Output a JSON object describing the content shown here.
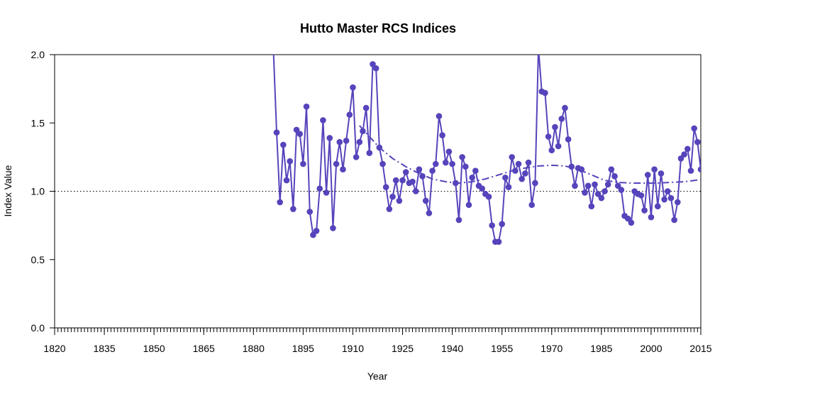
{
  "chart_data": {
    "type": "line",
    "title": "Hutto Master RCS Indices",
    "xlabel": "Year",
    "ylabel": "Index Value",
    "xlim": [
      1820,
      2015
    ],
    "ylim": [
      0,
      2.0
    ],
    "x_ticks": [
      1820,
      1835,
      1850,
      1865,
      1880,
      1895,
      1910,
      1925,
      1940,
      1955,
      1970,
      1985,
      2000,
      2015
    ],
    "y_ticks": [
      0.0,
      0.5,
      1.0,
      1.5,
      2.0
    ],
    "y_tick_labels": [
      "0.0",
      "0.5",
      "1.0",
      "1.5",
      "2.0"
    ],
    "reference_line": 1.0,
    "colors": {
      "series": "#5544bb",
      "reference": "#000000"
    },
    "series": [
      {
        "style": "line-markers",
        "x": [
          1886,
          1887,
          1888,
          1889,
          1890,
          1891,
          1892,
          1893,
          1894,
          1895,
          1896,
          1897,
          1898,
          1899,
          1900,
          1901,
          1902,
          1903,
          1904,
          1905,
          1906,
          1907,
          1908,
          1909,
          1910,
          1911,
          1912,
          1913,
          1914,
          1915,
          1916,
          1917,
          1918,
          1919,
          1920,
          1921,
          1922,
          1923,
          1924,
          1925,
          1926,
          1927,
          1928,
          1929,
          1930,
          1931,
          1932,
          1933,
          1934,
          1935,
          1936,
          1937,
          1938,
          1939,
          1940,
          1941,
          1942,
          1943,
          1944,
          1945,
          1946,
          1947,
          1948,
          1949,
          1950,
          1951,
          1952,
          1953,
          1954,
          1955,
          1956,
          1957,
          1958,
          1959,
          1960,
          1961,
          1962,
          1963,
          1964,
          1965,
          1966,
          1967,
          1968,
          1969,
          1970,
          1971,
          1972,
          1973,
          1974,
          1975,
          1976,
          1977,
          1978,
          1979,
          1980,
          1981,
          1982,
          1983,
          1984,
          1985,
          1986,
          1987,
          1988,
          1989,
          1990,
          1991,
          1992,
          1993,
          1994,
          1995,
          1996,
          1997,
          1998,
          1999,
          2000,
          2001,
          2002,
          2003,
          2004,
          2005,
          2006,
          2007,
          2008,
          2009,
          2010,
          2011,
          2012,
          2013,
          2014,
          2015
        ],
        "y": [
          2.05,
          1.43,
          0.92,
          1.34,
          1.08,
          1.22,
          0.87,
          1.45,
          1.42,
          1.2,
          1.62,
          0.85,
          0.68,
          0.71,
          1.02,
          1.52,
          0.99,
          1.39,
          0.73,
          1.2,
          1.36,
          1.16,
          1.37,
          1.56,
          1.76,
          1.25,
          1.36,
          1.44,
          1.61,
          1.28,
          1.93,
          1.9,
          1.32,
          1.2,
          1.03,
          0.87,
          0.96,
          1.08,
          0.93,
          1.08,
          1.14,
          1.06,
          1.07,
          1.0,
          1.16,
          1.11,
          0.93,
          0.84,
          1.15,
          1.2,
          1.55,
          1.41,
          1.21,
          1.29,
          1.2,
          1.06,
          0.79,
          1.25,
          1.18,
          0.9,
          1.1,
          1.15,
          1.04,
          1.02,
          0.98,
          0.96,
          0.75,
          0.63,
          0.63,
          0.76,
          1.1,
          1.03,
          1.25,
          1.15,
          1.2,
          1.09,
          1.13,
          1.21,
          0.9,
          1.06,
          2.05,
          1.73,
          1.72,
          1.4,
          1.3,
          1.47,
          1.33,
          1.53,
          1.61,
          1.38,
          1.18,
          1.04,
          1.17,
          1.16,
          0.99,
          1.04,
          0.89,
          1.05,
          0.98,
          0.95,
          1.0,
          1.05,
          1.16,
          1.11,
          1.04,
          1.01,
          0.82,
          0.8,
          0.77,
          1.0,
          0.98,
          0.97,
          0.86,
          1.12,
          0.81,
          1.16,
          0.89,
          1.13,
          0.94,
          1.0,
          0.95,
          0.79,
          0.92,
          1.24,
          1.27,
          1.31,
          1.15,
          1.46,
          1.36,
          1.16
        ]
      },
      {
        "style": "dash-dot",
        "x": [
          1912,
          1915,
          1918,
          1922,
          1926,
          1930,
          1934,
          1938,
          1942,
          1946,
          1950,
          1954,
          1958,
          1962,
          1966,
          1970,
          1974,
          1978,
          1982,
          1986,
          1990,
          1994,
          1998,
          2002,
          2006,
          2010,
          2015
        ],
        "y": [
          1.48,
          1.4,
          1.32,
          1.24,
          1.18,
          1.13,
          1.09,
          1.07,
          1.06,
          1.07,
          1.09,
          1.12,
          1.15,
          1.17,
          1.185,
          1.19,
          1.185,
          1.16,
          1.12,
          1.08,
          1.065,
          1.06,
          1.06,
          1.06,
          1.065,
          1.07,
          1.085
        ]
      }
    ]
  }
}
